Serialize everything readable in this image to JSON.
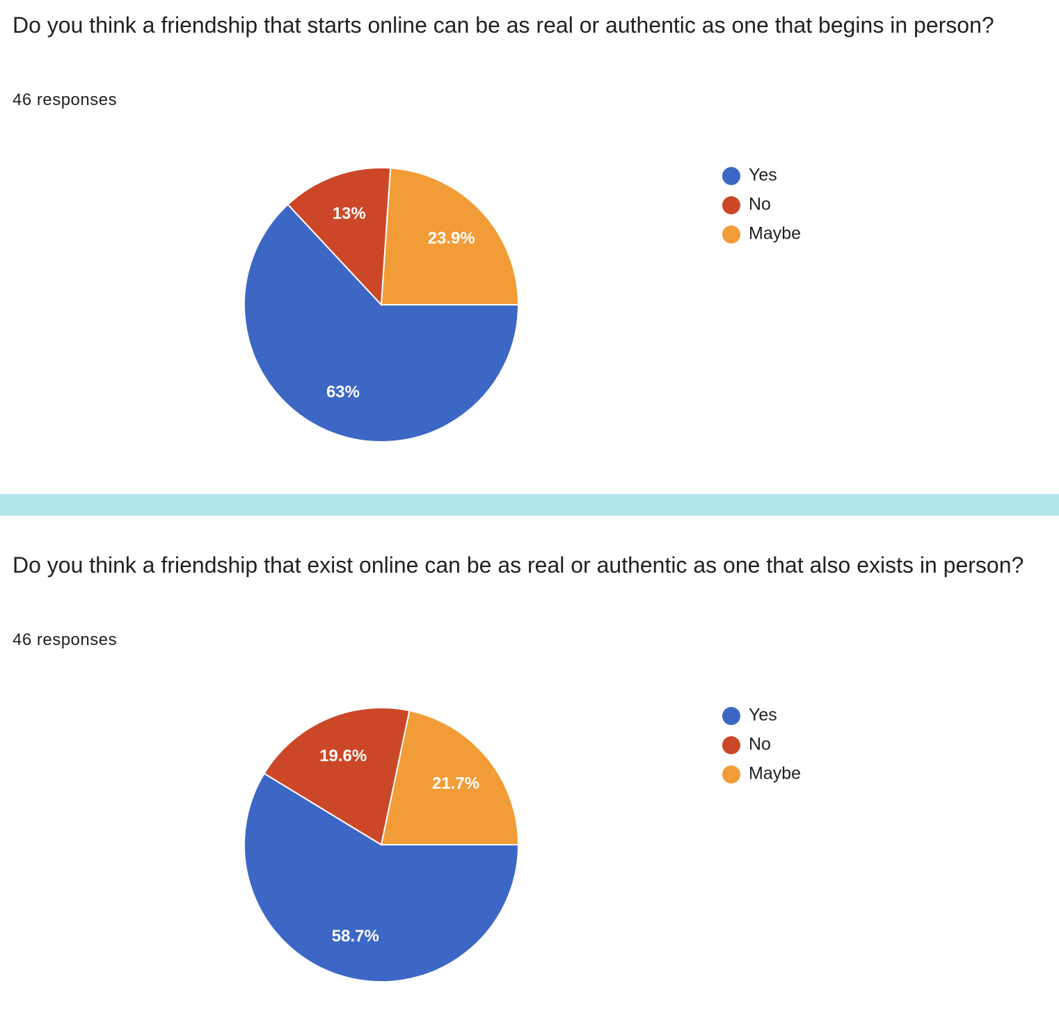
{
  "chart_data": [
    {
      "type": "pie",
      "title": "Do you think a friendship that starts online can be as real or authentic as one that begins in person?",
      "subtitle": "46 responses",
      "categories": [
        "Yes",
        "No",
        "Maybe"
      ],
      "values": [
        63,
        13,
        23.9
      ],
      "value_labels": [
        "63%",
        "13%",
        "23.9%"
      ],
      "colors": [
        "#3d67c5",
        "#cc4727",
        "#f29c37"
      ]
    },
    {
      "type": "pie",
      "title": "Do you think a friendship that exist online can be as real or authentic as one that also exists in person?",
      "subtitle": "46 responses",
      "categories": [
        "Yes",
        "No",
        "Maybe"
      ],
      "values": [
        58.7,
        19.6,
        21.7
      ],
      "value_labels": [
        "58.7%",
        "19.6%",
        "21.7%"
      ],
      "colors": [
        "#3d67c5",
        "#cc4727",
        "#f29c37"
      ]
    }
  ]
}
